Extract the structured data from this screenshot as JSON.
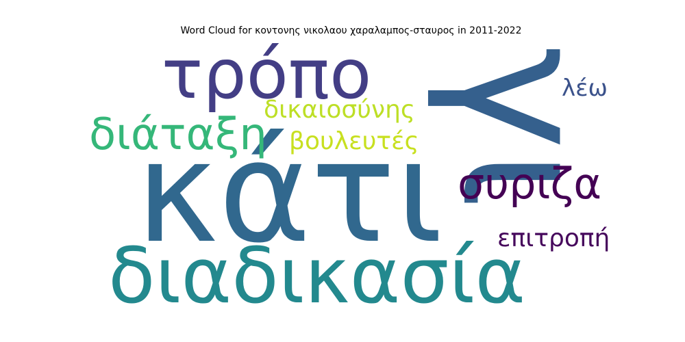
{
  "title": "Word Cloud for κοντονης νικολαου χαραλαμπος-σταυρος in 2011-2022",
  "words": [
    {
      "text": "κάτι",
      "color": "#31688e"
    },
    {
      "text": "γι",
      "color": "#35608d"
    },
    {
      "text": "διαδικασία",
      "color": "#23898e"
    },
    {
      "text": "τρόπο",
      "color": "#433e85"
    },
    {
      "text": "διάταξη",
      "color": "#35b779"
    },
    {
      "text": "συριζα",
      "color": "#440154"
    },
    {
      "text": "δικαιοσύνης",
      "color": "#bddf26"
    },
    {
      "text": "βουλευτές",
      "color": "#c8e020"
    },
    {
      "text": "επιτροπή",
      "color": "#46085c"
    },
    {
      "text": "λέω",
      "color": "#3b528b"
    }
  ]
}
